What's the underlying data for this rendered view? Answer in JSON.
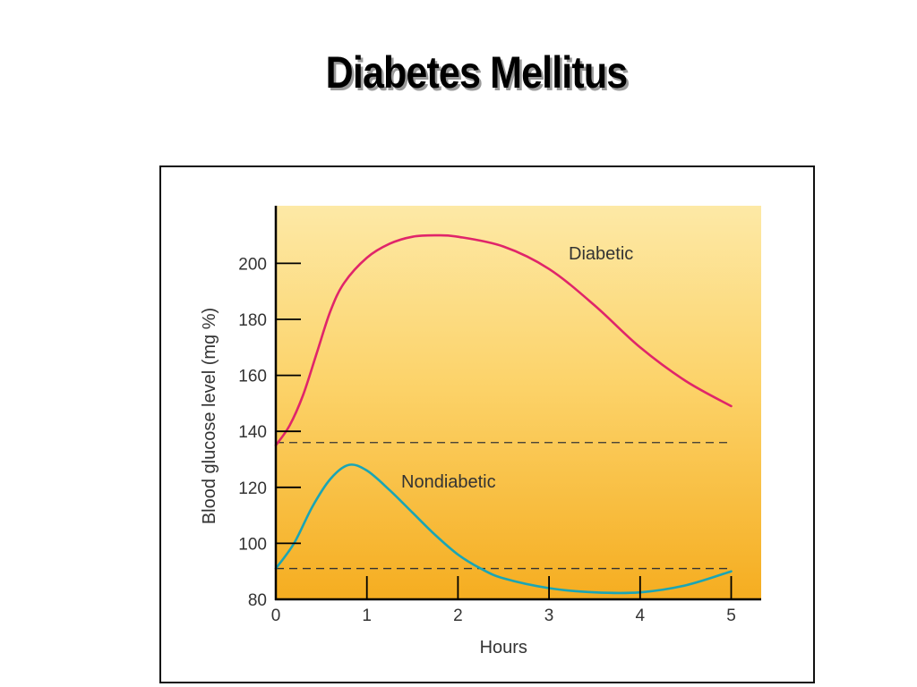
{
  "slide": {
    "title": "Diabetes Mellitus"
  },
  "chart_data": {
    "type": "line",
    "title": "",
    "xlabel": "Hours",
    "ylabel": "Blood glucose level (mg %)",
    "xlim": [
      0,
      5.4
    ],
    "ylim": [
      80,
      210
    ],
    "x_ticks": [
      0,
      1,
      2,
      3,
      4,
      5
    ],
    "y_ticks": [
      80,
      100,
      120,
      140,
      160,
      180,
      200
    ],
    "grid": false,
    "background": "yellow-to-orange vertical gradient",
    "series": [
      {
        "name": "Diabetic",
        "color": "#e0256a",
        "x": [
          0,
          0.15,
          0.3,
          0.45,
          0.6,
          0.75,
          1,
          1.25,
          1.5,
          1.75,
          2,
          2.5,
          3,
          3.5,
          4,
          4.5,
          5
        ],
        "y": [
          135,
          142,
          153,
          168,
          183,
          193,
          202,
          207,
          209.5,
          210,
          209.5,
          206,
          198,
          185,
          170,
          158,
          149
        ]
      },
      {
        "name": "Nondiabetic",
        "color": "#1aa5b5",
        "x": [
          0,
          0.2,
          0.4,
          0.6,
          0.8,
          1,
          1.25,
          1.5,
          1.75,
          2,
          2.25,
          2.5,
          3,
          3.5,
          4,
          4.5,
          5
        ],
        "y": [
          91,
          100,
          113,
          123,
          128,
          126,
          119,
          111,
          103,
          96,
          91,
          87.5,
          84,
          82.5,
          82.5,
          85,
          90
        ]
      }
    ],
    "reference_lines": [
      {
        "y": 136,
        "style": "dashed"
      },
      {
        "y": 91,
        "style": "dashed"
      }
    ]
  }
}
